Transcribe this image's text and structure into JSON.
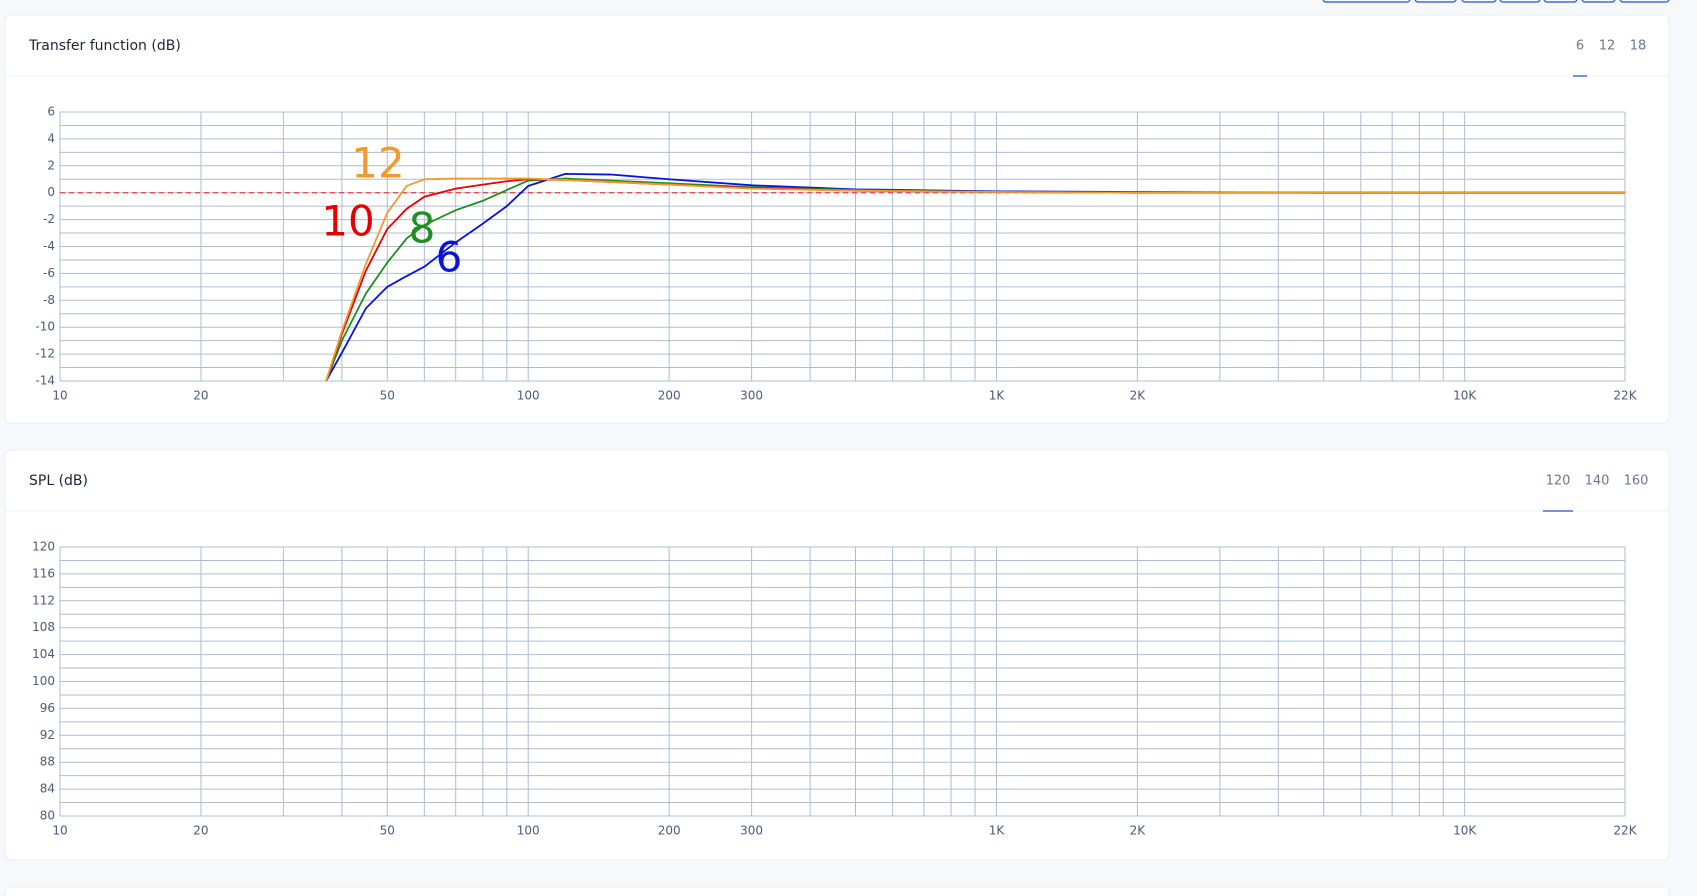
{
  "chart_data": [
    {
      "type": "line",
      "title": "Transfer function (dB)",
      "tabs": [
        "6",
        "12",
        "18"
      ],
      "active_tab": 0,
      "xscale": "log",
      "xlim": [
        10,
        22000
      ],
      "xticks": [
        10,
        20,
        50,
        100,
        200,
        300,
        {
          "value": 1000,
          "label": "1K"
        },
        {
          "value": 2000,
          "label": "2K"
        },
        {
          "value": 10000,
          "label": "10K"
        },
        {
          "value": 22000,
          "label": "22K"
        }
      ],
      "x_grid": [
        30,
        40,
        60,
        70,
        80,
        90,
        400,
        500,
        600,
        700,
        800,
        900,
        3000,
        4000,
        5000,
        6000,
        7000,
        8000,
        9000
      ],
      "ylim": [
        -14,
        6
      ],
      "yticks": [
        -14,
        -12,
        -10,
        -8,
        -6,
        -4,
        -2,
        0,
        2,
        4,
        6
      ],
      "y_grid": [
        -13,
        -11,
        -9,
        -7,
        -5,
        -3,
        -1,
        1,
        3,
        5
      ],
      "reference_line": {
        "value": 0,
        "color": "#f04a4a"
      },
      "x": [
        37,
        40,
        45,
        50,
        55,
        60,
        70,
        80,
        90,
        100,
        120,
        150,
        200,
        300,
        500,
        1000,
        2000,
        5000,
        22000
      ],
      "series": [
        {
          "name": "6",
          "color": "#0a14d8",
          "values": [
            -14,
            -11.9,
            -8.6,
            -7,
            -6.2,
            -5.5,
            -3.7,
            -2.3,
            -1.0,
            0.5,
            1.4,
            1.35,
            1.0,
            0.55,
            0.25,
            0.1,
            0.05,
            0,
            0
          ]
        },
        {
          "name": "8",
          "color": "#1f8f1f",
          "values": [
            -14,
            -11,
            -7.5,
            -5.2,
            -3.4,
            -2.4,
            -1.3,
            -0.6,
            0.2,
            0.9,
            1.05,
            0.9,
            0.7,
            0.4,
            0.2,
            0.05,
            0,
            0,
            0
          ]
        },
        {
          "name": "10",
          "color": "#e60000",
          "values": [
            -14,
            -10.5,
            -5.8,
            -2.7,
            -1.2,
            -0.3,
            0.3,
            0.6,
            0.85,
            1.0,
            0.95,
            0.8,
            0.6,
            0.35,
            0.15,
            0.05,
            0,
            0,
            0
          ]
        },
        {
          "name": "12",
          "color": "#f29a2e",
          "values": [
            -14,
            -10.3,
            -5.3,
            -1.5,
            0.5,
            1.0,
            1.05,
            1.05,
            1.05,
            1.05,
            0.95,
            0.8,
            0.6,
            0.3,
            0.15,
            0.05,
            0,
            0,
            0
          ]
        }
      ]
    },
    {
      "type": "line",
      "title": "SPL (dB)",
      "tabs": [
        "120",
        "140",
        "160"
      ],
      "active_tab": 0,
      "xscale": "log",
      "xlim": [
        10,
        22000
      ],
      "xticks": [
        10,
        20,
        50,
        100,
        200,
        300,
        {
          "value": 1000,
          "label": "1K"
        },
        {
          "value": 2000,
          "label": "2K"
        },
        {
          "value": 10000,
          "label": "10K"
        },
        {
          "value": 22000,
          "label": "22K"
        }
      ],
      "x_grid": [
        30,
        40,
        60,
        70,
        80,
        90,
        400,
        500,
        600,
        700,
        800,
        900,
        3000,
        4000,
        5000,
        6000,
        7000,
        8000,
        9000
      ],
      "ylim": [
        80,
        120
      ],
      "yticks": [
        80,
        84,
        88,
        92,
        96,
        100,
        104,
        108,
        112,
        116,
        120
      ],
      "y_grid": [
        82,
        86,
        90,
        94,
        98,
        102,
        106,
        110,
        114,
        118
      ],
      "series": []
    }
  ]
}
